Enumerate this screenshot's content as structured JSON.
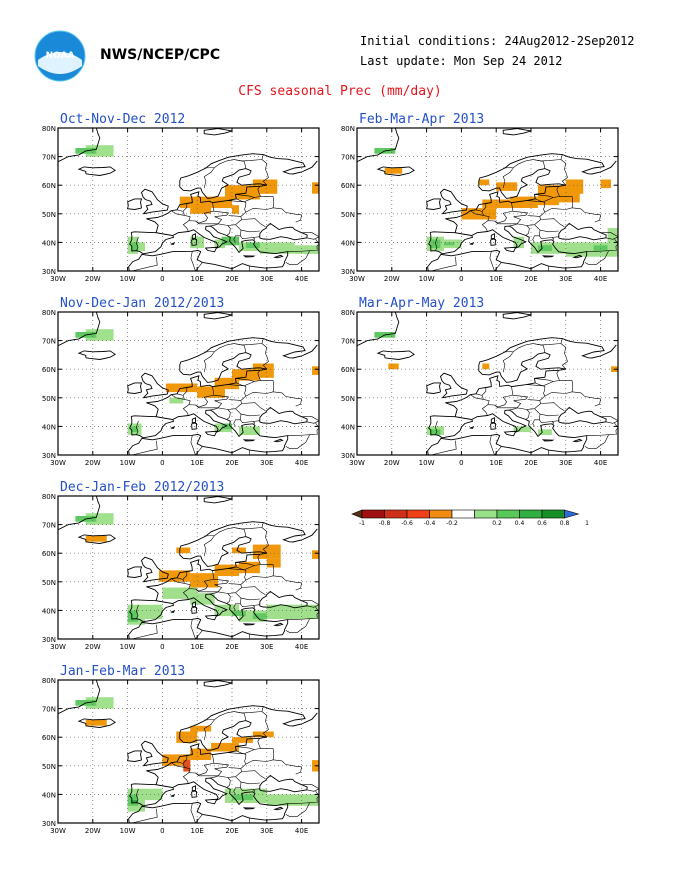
{
  "header": {
    "agency": "NWS/NCEP/CPC",
    "initial_conditions": "Initial conditions: 24Aug2012-2Sep2012",
    "last_update": "Last update: Mon Sep 24 2012",
    "title": "CFS seasonal Prec (mm/day)"
  },
  "logo": {
    "text": "NOAA"
  },
  "axes": {
    "lat_labels": [
      "80N",
      "70N",
      "60N",
      "50N",
      "40N",
      "30N"
    ],
    "lon_labels": [
      "30W",
      "20W",
      "10W",
      "0",
      "10E",
      "20E",
      "30E",
      "40E"
    ],
    "lat_range": [
      30,
      80
    ],
    "lon_range": [
      -30,
      45
    ]
  },
  "panels": [
    {
      "id": "ond",
      "title": "Oct-Nov-Dec 2012"
    },
    {
      "id": "fma",
      "title": "Feb-Mar-Apr 2013"
    },
    {
      "id": "ndj",
      "title": "Nov-Dec-Jan 2012/2013"
    },
    {
      "id": "mam",
      "title": "Mar-Apr-May 2013"
    },
    {
      "id": "djf",
      "title": "Dec-Jan-Feb 2012/2013"
    },
    {
      "id": "jfm",
      "title": "Jan-Feb-Mar 2013"
    }
  ],
  "colorbar": {
    "labels": [
      "-1",
      "-0.8",
      "-0.6",
      "-0.4",
      "-0.2",
      "0.2",
      "0.4",
      "0.6",
      "0.8",
      "1"
    ],
    "colors": [
      "#5a2d14",
      "#a01010",
      "#d0301a",
      "#f04018",
      "#f08c10",
      "#ffffff",
      "#98e088",
      "#58c858",
      "#30b040",
      "#189028",
      "#2e6ad8"
    ]
  },
  "colors": {
    "negative": "#f0980a",
    "strong_negative": "#e05018",
    "positive_light": "#a0e08c",
    "positive": "#60c860",
    "positive_strong": "#30a040",
    "title": "#2450c8",
    "main_title": "#e8141e"
  },
  "anomalies": {
    "ond": {
      "orange": [
        [
          5,
          52,
          8,
          56
        ],
        [
          8,
          50,
          14,
          56
        ],
        [
          14,
          52,
          20,
          56
        ],
        [
          18,
          55,
          28,
          60
        ],
        [
          26,
          57,
          33,
          62
        ],
        [
          20,
          50,
          22,
          53
        ],
        [
          43,
          57,
          45,
          61
        ]
      ],
      "green_light": [
        [
          -10,
          36,
          -7,
          42
        ],
        [
          -7,
          37,
          -5,
          40
        ],
        [
          8,
          38,
          12,
          42
        ],
        [
          15,
          38,
          18,
          41
        ],
        [
          22,
          37,
          28,
          40
        ],
        [
          28,
          36,
          38,
          40
        ],
        [
          38,
          36,
          45,
          39
        ],
        [
          -22,
          70,
          -14,
          74
        ]
      ],
      "green": [
        [
          -9,
          37,
          -7,
          40
        ],
        [
          17,
          39,
          22,
          42
        ],
        [
          24,
          38,
          28,
          40
        ],
        [
          -25,
          71,
          -19,
          73
        ]
      ],
      "green_dark": []
    },
    "fma": {
      "orange": [
        [
          -22,
          64,
          -17,
          66
        ],
        [
          0,
          48,
          10,
          52
        ],
        [
          6,
          52,
          14,
          55
        ],
        [
          14,
          52,
          22,
          56
        ],
        [
          22,
          53,
          28,
          60
        ],
        [
          28,
          54,
          34,
          60
        ],
        [
          30,
          57,
          35,
          62
        ],
        [
          10,
          58,
          16,
          61
        ],
        [
          5,
          60,
          8,
          62
        ],
        [
          40,
          59,
          43,
          62
        ]
      ],
      "green_light": [
        [
          -10,
          37,
          -5,
          42
        ],
        [
          -5,
          38,
          0,
          41
        ],
        [
          15,
          38,
          18,
          42
        ],
        [
          20,
          36,
          30,
          40
        ],
        [
          30,
          35,
          45,
          40
        ],
        [
          42,
          40,
          45,
          45
        ]
      ],
      "green": [
        [
          -9,
          38,
          -6,
          41
        ],
        [
          -5,
          39,
          -2,
          40
        ],
        [
          22,
          37,
          26,
          39
        ],
        [
          38,
          37,
          42,
          39
        ],
        [
          -25,
          71,
          -19,
          73
        ]
      ],
      "green_dark": []
    },
    "ndj": {
      "orange": [
        [
          1,
          52,
          10,
          55
        ],
        [
          10,
          50,
          18,
          54
        ],
        [
          15,
          53,
          22,
          57
        ],
        [
          20,
          56,
          28,
          60
        ],
        [
          26,
          57,
          32,
          62
        ],
        [
          43,
          58,
          45,
          61
        ]
      ],
      "green_light": [
        [
          -10,
          37,
          -6,
          41
        ],
        [
          2,
          48,
          6,
          50
        ],
        [
          15,
          38,
          20,
          41
        ],
        [
          22,
          37,
          28,
          40
        ],
        [
          -22,
          70,
          -14,
          74
        ]
      ],
      "green": [
        [
          -9,
          38,
          -7,
          40
        ],
        [
          17,
          39,
          20,
          41
        ],
        [
          -25,
          71,
          -19,
          73
        ]
      ],
      "green_dark": []
    },
    "mam": {
      "orange": [
        [
          -21,
          60,
          -18,
          62
        ],
        [
          6,
          60,
          8,
          62
        ],
        [
          43,
          59,
          45,
          61
        ]
      ],
      "green_light": [
        [
          -10,
          37,
          -5,
          40
        ],
        [
          15,
          38,
          20,
          40
        ],
        [
          22,
          37,
          26,
          39
        ]
      ],
      "green": [
        [
          -9,
          37,
          -6,
          39
        ],
        [
          -25,
          71,
          -19,
          73
        ]
      ],
      "green_dark": []
    },
    "djf": {
      "orange": [
        [
          -22,
          64,
          -16,
          66
        ],
        [
          -1,
          50,
          8,
          54
        ],
        [
          8,
          48,
          16,
          53
        ],
        [
          15,
          52,
          22,
          56
        ],
        [
          22,
          53,
          28,
          57
        ],
        [
          4,
          60,
          8,
          62
        ],
        [
          20,
          60,
          24,
          62
        ],
        [
          26,
          58,
          34,
          63
        ],
        [
          30,
          55,
          34,
          58
        ],
        [
          43,
          58,
          45,
          61
        ]
      ],
      "green_light": [
        [
          -10,
          35,
          -5,
          42
        ],
        [
          -5,
          37,
          0,
          42
        ],
        [
          0,
          44,
          10,
          48
        ],
        [
          8,
          42,
          15,
          46
        ],
        [
          15,
          38,
          22,
          42
        ],
        [
          22,
          36,
          30,
          40
        ],
        [
          30,
          37,
          45,
          42
        ],
        [
          -22,
          70,
          -14,
          74
        ]
      ],
      "green": [
        [
          -10,
          36,
          -7,
          40
        ],
        [
          20,
          38,
          24,
          40
        ],
        [
          26,
          37,
          30,
          39
        ],
        [
          -25,
          71,
          -19,
          73
        ]
      ],
      "green_dark": []
    },
    "jfm": {
      "orange": [
        [
          -22,
          64,
          -16,
          66
        ],
        [
          4,
          58,
          10,
          62
        ],
        [
          8,
          62,
          14,
          64
        ],
        [
          0,
          50,
          8,
          54
        ],
        [
          8,
          52,
          14,
          56
        ],
        [
          14,
          55,
          22,
          58
        ],
        [
          20,
          58,
          26,
          60
        ],
        [
          26,
          60,
          32,
          62
        ],
        [
          43,
          48,
          45,
          52
        ]
      ],
      "green_light": [
        [
          -10,
          34,
          -5,
          42
        ],
        [
          -5,
          38,
          0,
          42
        ],
        [
          18,
          37,
          30,
          42
        ],
        [
          30,
          36,
          45,
          40
        ],
        [
          -22,
          70,
          -14,
          74
        ]
      ],
      "green": [
        [
          -10,
          36,
          -7,
          40
        ],
        [
          20,
          38,
          26,
          40
        ],
        [
          -25,
          71,
          -19,
          73
        ]
      ],
      "green_dark": [
        [
          -9,
          37,
          -7,
          38
        ]
      ],
      "red": [
        [
          6,
          48,
          8,
          52
        ]
      ]
    }
  }
}
